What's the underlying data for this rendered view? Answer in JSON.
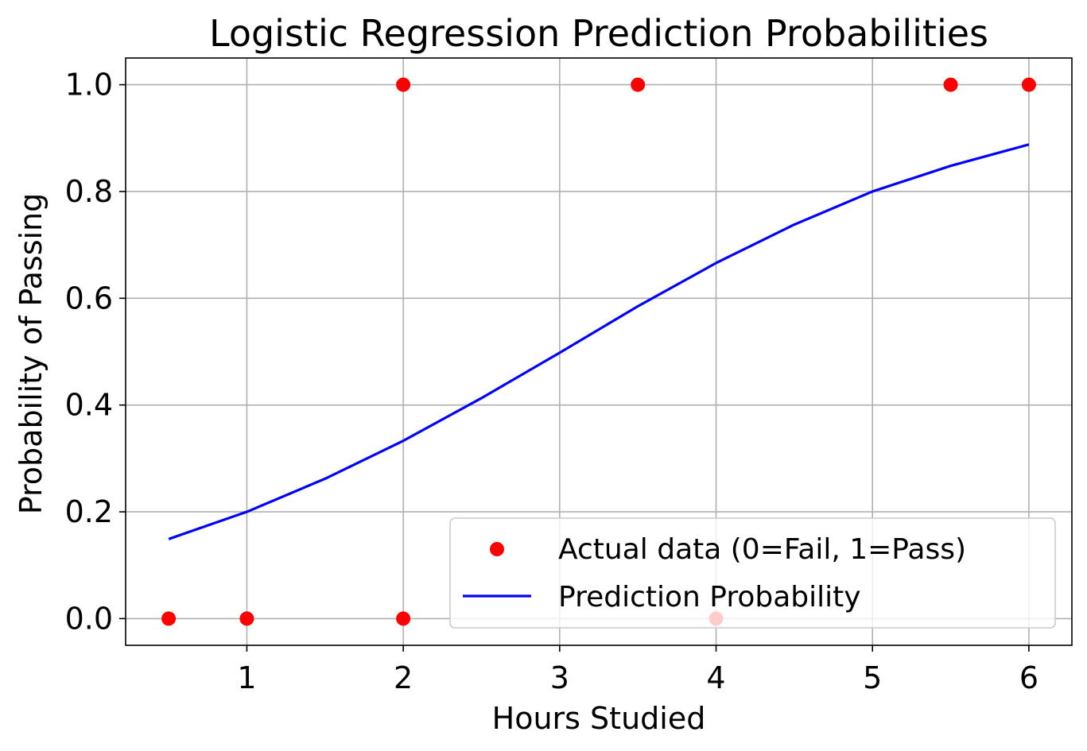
{
  "chart_data": {
    "type": "scatter",
    "title": "Logistic Regression Prediction Probabilities",
    "xlabel": "Hours Studied",
    "ylabel": "Probability of Passing",
    "xlim": [
      0.225,
      6.275
    ],
    "ylim": [
      -0.05,
      1.05
    ],
    "xticks": [
      1,
      2,
      3,
      4,
      5,
      6
    ],
    "yticks": [
      0.0,
      0.2,
      0.4,
      0.6,
      0.8,
      1.0
    ],
    "xtick_labels": [
      "1",
      "2",
      "3",
      "4",
      "5",
      "6"
    ],
    "ytick_labels": [
      "0.0",
      "0.2",
      "0.4",
      "0.6",
      "0.8",
      "1.0"
    ],
    "grid": true,
    "legend_position": "lower-right",
    "series": [
      {
        "name": "Actual data (0=Fail, 1=Pass)",
        "kind": "scatter",
        "color": "#ff0000",
        "x": [
          0.5,
          1.0,
          2.0,
          2.0,
          3.5,
          4.0,
          5.5,
          6.0
        ],
        "y": [
          0,
          0,
          0,
          1,
          1,
          0,
          1,
          1
        ]
      },
      {
        "name": "Prediction Probability",
        "kind": "line",
        "color": "#0000ff",
        "x": [
          0.5,
          1.0,
          1.5,
          2.0,
          2.5,
          3.0,
          3.5,
          4.0,
          4.5,
          5.0,
          5.5,
          6.0
        ],
        "y": [
          0.149,
          0.2,
          0.262,
          0.333,
          0.413,
          0.498,
          0.585,
          0.666,
          0.738,
          0.8,
          0.848,
          0.888
        ]
      }
    ]
  }
}
